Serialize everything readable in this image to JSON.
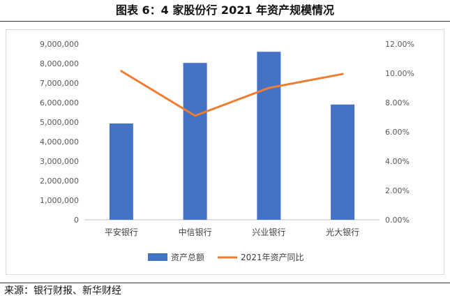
{
  "title": "图表 6：4 家股份行 2021 年资产规模情况",
  "source": "来源：银行财报、新华财经",
  "chart_data": {
    "type": "bar",
    "categories": [
      "平安银行",
      "中信银行",
      "兴业银行",
      "光大银行"
    ],
    "series": [
      {
        "name": "资产总额",
        "type": "bar",
        "axis": "left",
        "color": "#4472C4",
        "values": [
          4930000,
          8030000,
          8600000,
          5900000
        ]
      },
      {
        "name": "2021年资产同比",
        "type": "line",
        "axis": "right",
        "color": "#ED7D31",
        "values": [
          0.1015,
          0.071,
          0.09,
          0.0995
        ]
      }
    ],
    "y_left": {
      "min": 0,
      "max": 9000000,
      "step": 1000000,
      "tick_labels": [
        "0",
        "1,000,000",
        "2,000,000",
        "3,000,000",
        "4,000,000",
        "5,000,000",
        "6,000,000",
        "7,000,000",
        "8,000,000",
        "9,000,000"
      ]
    },
    "y_right": {
      "min": 0,
      "max": 0.12,
      "step": 0.02,
      "tick_labels": [
        "0.00%",
        "2.00%",
        "4.00%",
        "6.00%",
        "8.00%",
        "10.00%",
        "12.00%"
      ]
    },
    "grid": false,
    "legend": "bottom"
  }
}
